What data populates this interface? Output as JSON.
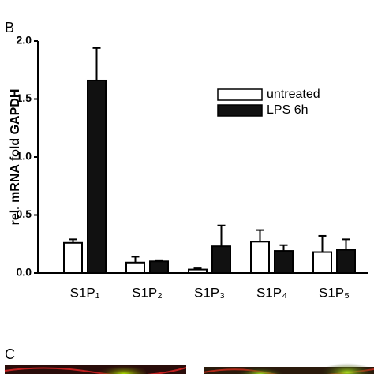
{
  "panel_labels": [
    "B",
    "C"
  ],
  "chart_data": {
    "type": "bar",
    "ylabel": "rel. mRNA fold GAPDH",
    "categories": [
      "S1P₁",
      "S1P₂",
      "S1P₃",
      "S1P₄",
      "S1P₅"
    ],
    "series": [
      {
        "name": "untreated",
        "color": "#ffffff",
        "values": [
          0.26,
          0.09,
          0.03,
          0.27,
          0.18
        ],
        "errors": [
          0.03,
          0.05,
          0.01,
          0.1,
          0.14
        ]
      },
      {
        "name": "LPS 6h",
        "color": "#111111",
        "values": [
          1.66,
          0.1,
          0.23,
          0.19,
          0.2
        ],
        "errors": [
          0.28,
          0.01,
          0.18,
          0.05,
          0.09
        ]
      }
    ],
    "ylim": [
      0,
      2
    ],
    "yticks": [
      {
        "value": 0,
        "label": "0.0"
      },
      {
        "value": 0.5,
        "label": "0.5"
      },
      {
        "value": 1,
        "label": "1.0"
      },
      {
        "value": 1.5,
        "label": "1.5"
      },
      {
        "value": 2,
        "label": "2.0"
      }
    ],
    "legend": "upper right"
  }
}
